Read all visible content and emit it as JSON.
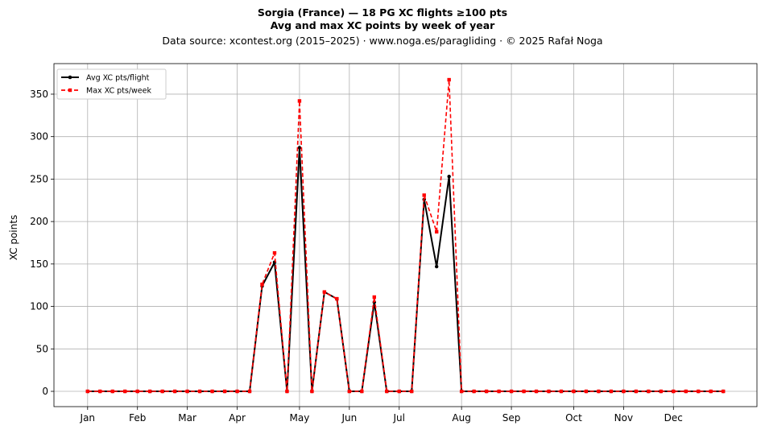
{
  "chart_data": {
    "type": "line",
    "title": "Sorgia (France)  —  18 PG XC flights ≥100 pts",
    "subtitle": "Avg and max XC points by week of year",
    "source": "Data source: xcontest.org (2015–2025)  ·  www.noga.es/paragliding  ·  © 2025 Rafał Noga",
    "xlabel": "",
    "ylabel": "XC points",
    "x_tick_labels": [
      {
        "label": "Jan",
        "week": 1
      },
      {
        "label": "Feb",
        "week": 5
      },
      {
        "label": "Mar",
        "week": 9
      },
      {
        "label": "Apr",
        "week": 13
      },
      {
        "label": "May",
        "week": 18
      },
      {
        "label": "Jun",
        "week": 22
      },
      {
        "label": "Jul",
        "week": 26
      },
      {
        "label": "Aug",
        "week": 31
      },
      {
        "label": "Sep",
        "week": 35
      },
      {
        "label": "Oct",
        "week": 40
      },
      {
        "label": "Nov",
        "week": 44
      },
      {
        "label": "Dec",
        "week": 48
      }
    ],
    "y_ticks": [
      0,
      50,
      100,
      150,
      200,
      250,
      300,
      350
    ],
    "xlim": [
      -1.7,
      54.7
    ],
    "ylim": [
      -18,
      386
    ],
    "grid": true,
    "legend_position": "top-left",
    "weeks": [
      1,
      2,
      3,
      4,
      5,
      6,
      7,
      8,
      9,
      10,
      11,
      12,
      13,
      14,
      15,
      16,
      17,
      18,
      19,
      20,
      21,
      22,
      23,
      24,
      25,
      26,
      27,
      28,
      29,
      30,
      31,
      32,
      33,
      34,
      35,
      36,
      37,
      38,
      39,
      40,
      41,
      42,
      43,
      44,
      45,
      46,
      47,
      48,
      49,
      50,
      51,
      52
    ],
    "series": [
      {
        "name": "Avg XC pts/flight",
        "color": "#000000",
        "style": "solid",
        "marker": "circle",
        "values": [
          0,
          0,
          0,
          0,
          0,
          0,
          0,
          0,
          0,
          0,
          0,
          0,
          0,
          0,
          124,
          152,
          0,
          287,
          0,
          117,
          109,
          0,
          0,
          105,
          0,
          0,
          0,
          226,
          147,
          253,
          0,
          0,
          0,
          0,
          0,
          0,
          0,
          0,
          0,
          0,
          0,
          0,
          0,
          0,
          0,
          0,
          0,
          0,
          0,
          0,
          0,
          0
        ]
      },
      {
        "name": "Max XC pts/week",
        "color": "#ff0000",
        "style": "dashed",
        "marker": "square",
        "values": [
          0,
          0,
          0,
          0,
          0,
          0,
          0,
          0,
          0,
          0,
          0,
          0,
          0,
          0,
          126,
          163,
          0,
          342,
          0,
          117,
          109,
          0,
          0,
          111,
          0,
          0,
          0,
          231,
          188,
          367,
          0,
          0,
          0,
          0,
          0,
          0,
          0,
          0,
          0,
          0,
          0,
          0,
          0,
          0,
          0,
          0,
          0,
          0,
          0,
          0,
          0,
          0
        ]
      }
    ]
  }
}
